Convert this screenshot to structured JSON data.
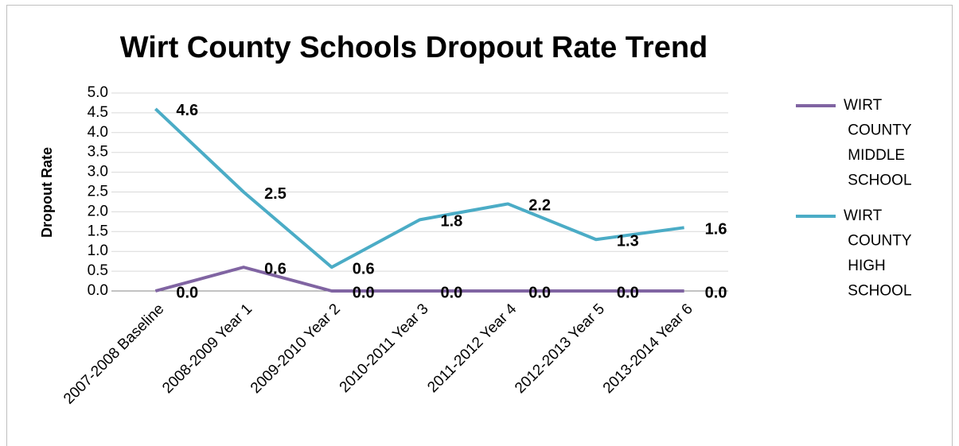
{
  "chart_data": {
    "type": "line",
    "title": "Wirt County Schools Dropout Rate Trend",
    "y_label": "Dropout Rate",
    "categories": [
      "2007-2008 Baseline",
      "2008-2009 Year 1",
      "2009-2010 Year 2",
      "2010-2011 Year 3",
      "2011-2012 Year 4",
      "2012-2013 Year 5",
      "2013-2014 Year 6"
    ],
    "series": [
      {
        "name": "WIRT COUNTY MIDDLE SCHOOL",
        "color": "#8064a2",
        "values": [
          0,
          0.6,
          0,
          0,
          0,
          0,
          0
        ],
        "value_labels": [
          "0.0",
          "0.6",
          "0.0",
          "0.0",
          "0.0",
          "0.0",
          "0.0"
        ]
      },
      {
        "name": "WIRT COUNTY HIGH SCHOOL",
        "color": "#4bacc6",
        "values": [
          4.6,
          2.5,
          0.6,
          1.8,
          2.2,
          1.3,
          1.6
        ],
        "value_labels": [
          "4.6",
          "2.5",
          "0.6",
          "1.8",
          "2.2",
          "1.3",
          "1.6"
        ]
      }
    ],
    "ylim": [
      0,
      5
    ],
    "yticks": [
      {
        "value": 0,
        "label": "0.0"
      },
      {
        "value": 0.5,
        "label": "0.5"
      },
      {
        "value": 1,
        "label": "1.0"
      },
      {
        "value": 1.5,
        "label": "1.5"
      },
      {
        "value": 2,
        "label": "2.0"
      },
      {
        "value": 2.5,
        "label": "2.5"
      },
      {
        "value": 3,
        "label": "3.0"
      },
      {
        "value": 3.5,
        "label": "3.5"
      },
      {
        "value": 4,
        "label": "4.0"
      },
      {
        "value": 4.5,
        "label": "4.5"
      },
      {
        "value": 5,
        "label": "5.0"
      }
    ],
    "grid": true,
    "legend": "right"
  }
}
